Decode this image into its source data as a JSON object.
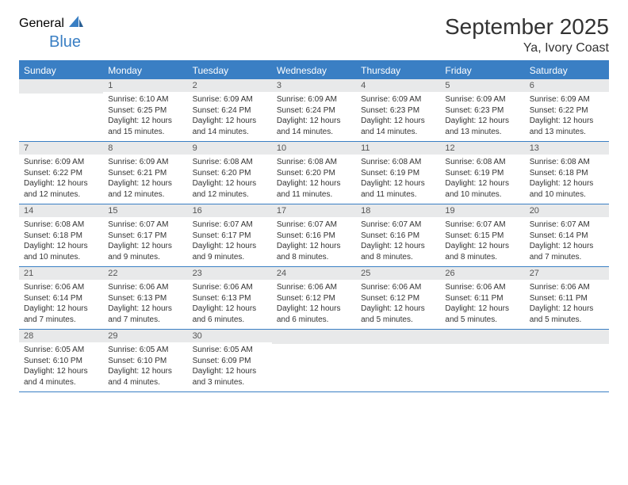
{
  "brand": {
    "part1": "General",
    "part2": "Blue"
  },
  "title": "September 2025",
  "location": "Ya, Ivory Coast",
  "colors": {
    "accent": "#3a7fc4",
    "header_row_bg": "#e8e9ea",
    "text": "#333333",
    "bg": "#ffffff"
  },
  "weekdays": [
    "Sunday",
    "Monday",
    "Tuesday",
    "Wednesday",
    "Thursday",
    "Friday",
    "Saturday"
  ],
  "weeks": [
    [
      null,
      {
        "n": "1",
        "sr": "6:10 AM",
        "ss": "6:25 PM",
        "dl": "12 hours and 15 minutes."
      },
      {
        "n": "2",
        "sr": "6:09 AM",
        "ss": "6:24 PM",
        "dl": "12 hours and 14 minutes."
      },
      {
        "n": "3",
        "sr": "6:09 AM",
        "ss": "6:24 PM",
        "dl": "12 hours and 14 minutes."
      },
      {
        "n": "4",
        "sr": "6:09 AM",
        "ss": "6:23 PM",
        "dl": "12 hours and 14 minutes."
      },
      {
        "n": "5",
        "sr": "6:09 AM",
        "ss": "6:23 PM",
        "dl": "12 hours and 13 minutes."
      },
      {
        "n": "6",
        "sr": "6:09 AM",
        "ss": "6:22 PM",
        "dl": "12 hours and 13 minutes."
      }
    ],
    [
      {
        "n": "7",
        "sr": "6:09 AM",
        "ss": "6:22 PM",
        "dl": "12 hours and 12 minutes."
      },
      {
        "n": "8",
        "sr": "6:09 AM",
        "ss": "6:21 PM",
        "dl": "12 hours and 12 minutes."
      },
      {
        "n": "9",
        "sr": "6:08 AM",
        "ss": "6:20 PM",
        "dl": "12 hours and 12 minutes."
      },
      {
        "n": "10",
        "sr": "6:08 AM",
        "ss": "6:20 PM",
        "dl": "12 hours and 11 minutes."
      },
      {
        "n": "11",
        "sr": "6:08 AM",
        "ss": "6:19 PM",
        "dl": "12 hours and 11 minutes."
      },
      {
        "n": "12",
        "sr": "6:08 AM",
        "ss": "6:19 PM",
        "dl": "12 hours and 10 minutes."
      },
      {
        "n": "13",
        "sr": "6:08 AM",
        "ss": "6:18 PM",
        "dl": "12 hours and 10 minutes."
      }
    ],
    [
      {
        "n": "14",
        "sr": "6:08 AM",
        "ss": "6:18 PM",
        "dl": "12 hours and 10 minutes."
      },
      {
        "n": "15",
        "sr": "6:07 AM",
        "ss": "6:17 PM",
        "dl": "12 hours and 9 minutes."
      },
      {
        "n": "16",
        "sr": "6:07 AM",
        "ss": "6:17 PM",
        "dl": "12 hours and 9 minutes."
      },
      {
        "n": "17",
        "sr": "6:07 AM",
        "ss": "6:16 PM",
        "dl": "12 hours and 8 minutes."
      },
      {
        "n": "18",
        "sr": "6:07 AM",
        "ss": "6:16 PM",
        "dl": "12 hours and 8 minutes."
      },
      {
        "n": "19",
        "sr": "6:07 AM",
        "ss": "6:15 PM",
        "dl": "12 hours and 8 minutes."
      },
      {
        "n": "20",
        "sr": "6:07 AM",
        "ss": "6:14 PM",
        "dl": "12 hours and 7 minutes."
      }
    ],
    [
      {
        "n": "21",
        "sr": "6:06 AM",
        "ss": "6:14 PM",
        "dl": "12 hours and 7 minutes."
      },
      {
        "n": "22",
        "sr": "6:06 AM",
        "ss": "6:13 PM",
        "dl": "12 hours and 7 minutes."
      },
      {
        "n": "23",
        "sr": "6:06 AM",
        "ss": "6:13 PM",
        "dl": "12 hours and 6 minutes."
      },
      {
        "n": "24",
        "sr": "6:06 AM",
        "ss": "6:12 PM",
        "dl": "12 hours and 6 minutes."
      },
      {
        "n": "25",
        "sr": "6:06 AM",
        "ss": "6:12 PM",
        "dl": "12 hours and 5 minutes."
      },
      {
        "n": "26",
        "sr": "6:06 AM",
        "ss": "6:11 PM",
        "dl": "12 hours and 5 minutes."
      },
      {
        "n": "27",
        "sr": "6:06 AM",
        "ss": "6:11 PM",
        "dl": "12 hours and 5 minutes."
      }
    ],
    [
      {
        "n": "28",
        "sr": "6:05 AM",
        "ss": "6:10 PM",
        "dl": "12 hours and 4 minutes."
      },
      {
        "n": "29",
        "sr": "6:05 AM",
        "ss": "6:10 PM",
        "dl": "12 hours and 4 minutes."
      },
      {
        "n": "30",
        "sr": "6:05 AM",
        "ss": "6:09 PM",
        "dl": "12 hours and 3 minutes."
      },
      null,
      null,
      null,
      null
    ]
  ],
  "labels": {
    "sunrise": "Sunrise:",
    "sunset": "Sunset:",
    "daylight": "Daylight:"
  }
}
